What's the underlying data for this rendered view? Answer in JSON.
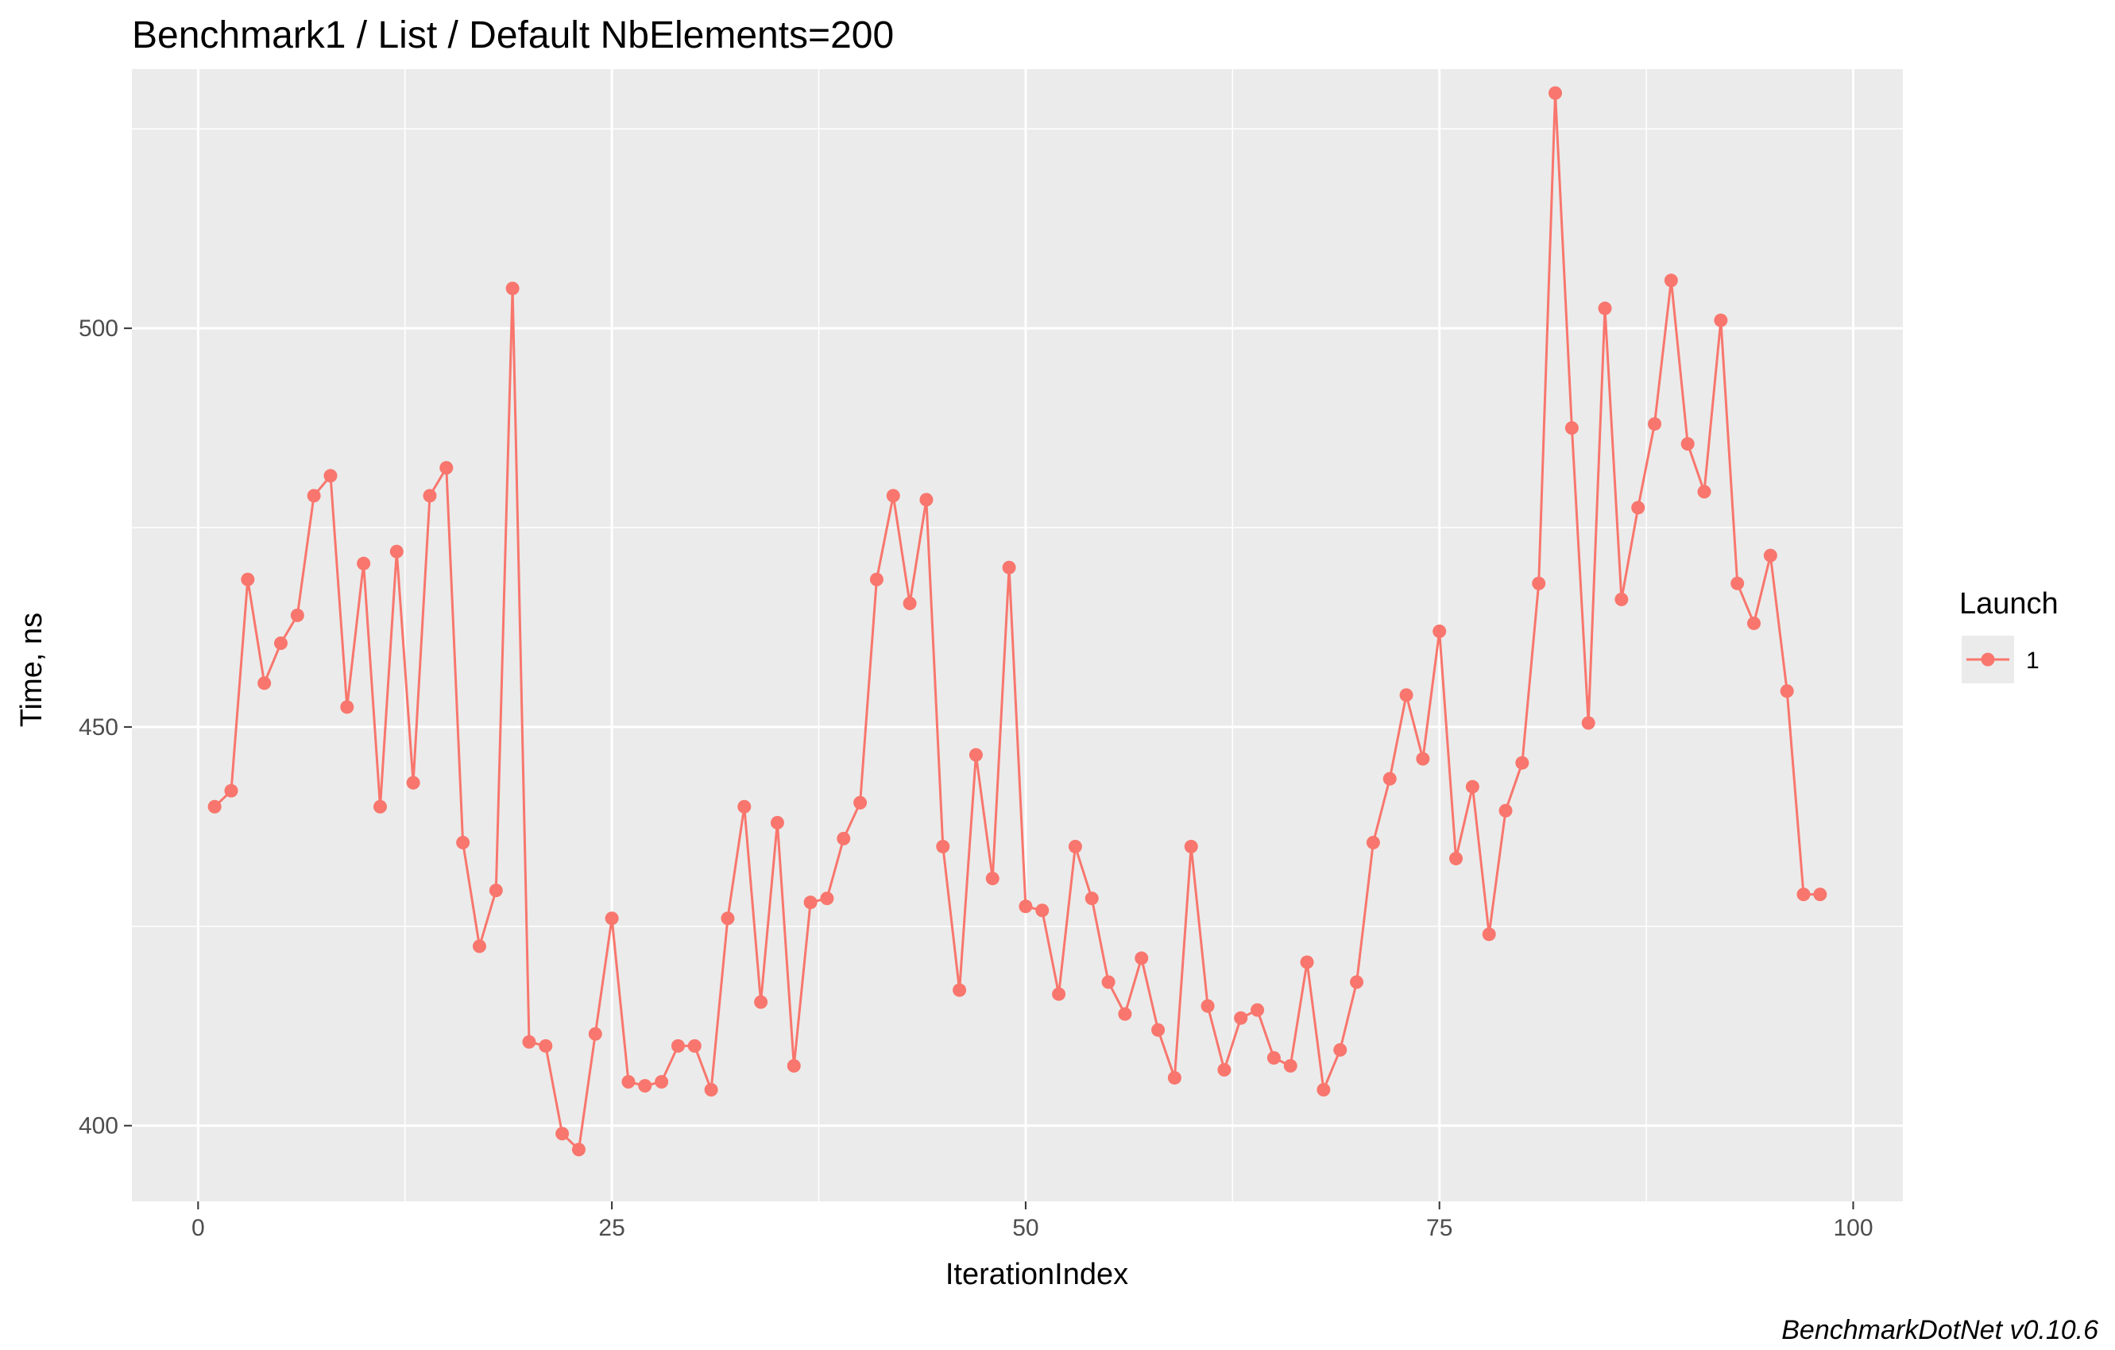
{
  "chart_data": {
    "type": "line",
    "title": "Benchmark1 / List / Default NbElements=200",
    "xlabel": "IterationIndex",
    "ylabel": "Time, ns",
    "caption": "BenchmarkDotNet v0.10.6",
    "xlim": [
      -4,
      103
    ],
    "ylim": [
      390.5,
      532.5
    ],
    "x_ticks": [
      0,
      25,
      50,
      75,
      100
    ],
    "x_tick_labels": [
      "0",
      "25",
      "50",
      "75",
      "100"
    ],
    "y_ticks": [
      400,
      450,
      500
    ],
    "y_tick_labels": [
      "400",
      "450",
      "500"
    ],
    "grid": true,
    "legend_position": "right",
    "legend_title": "Launch",
    "colors": {
      "series": "#f8766d",
      "panel": "#ebebeb",
      "grid": "#ffffff"
    },
    "series": [
      {
        "name": "1",
        "x": [
          1,
          2,
          3,
          4,
          5,
          6,
          7,
          8,
          9,
          10,
          11,
          12,
          13,
          14,
          15,
          16,
          17,
          18,
          19,
          20,
          21,
          22,
          23,
          24,
          25,
          26,
          27,
          28,
          29,
          30,
          31,
          32,
          33,
          34,
          35,
          36,
          37,
          38,
          39,
          40,
          41,
          42,
          43,
          44,
          45,
          46,
          47,
          48,
          49,
          50,
          51,
          52,
          53,
          54,
          55,
          56,
          57,
          58,
          59,
          60,
          61,
          62,
          63,
          64,
          65,
          66,
          67,
          68,
          69,
          70,
          71,
          72,
          73,
          74,
          75,
          76,
          77,
          78,
          79,
          80,
          81,
          82,
          83,
          84,
          85,
          86,
          87,
          88,
          89,
          90,
          91,
          92,
          93,
          94,
          95,
          96,
          97,
          98
        ],
        "y": [
          440.0,
          442.0,
          468.5,
          455.5,
          460.5,
          464.0,
          479.0,
          481.5,
          452.5,
          470.5,
          440.0,
          472.0,
          443.0,
          479.0,
          482.5,
          435.5,
          422.5,
          429.5,
          505.0,
          410.5,
          410.0,
          399.0,
          397.0,
          411.5,
          426.0,
          405.5,
          405.0,
          405.5,
          410.0,
          410.0,
          404.5,
          426.0,
          440.0,
          415.5,
          438.0,
          407.5,
          428.0,
          428.5,
          436.0,
          440.5,
          468.5,
          479.0,
          465.5,
          478.5,
          435.0,
          417.0,
          446.5,
          431.0,
          470.0,
          427.5,
          427.0,
          416.5,
          435.0,
          428.5,
          418.0,
          414.0,
          421.0,
          412.0,
          406.0,
          435.0,
          415.0,
          407.0,
          413.5,
          414.5,
          408.5,
          407.5,
          420.5,
          404.5,
          409.5,
          418.0,
          435.5,
          443.5,
          454.0,
          446.0,
          462.0,
          433.5,
          442.5,
          424.0,
          439.5,
          445.5,
          468.0,
          529.5,
          487.5,
          450.5,
          502.5,
          466.0,
          477.5,
          488.0,
          506.0,
          485.5,
          479.5,
          501.0,
          468.0,
          463.0,
          471.5,
          454.5,
          429.0,
          429.0
        ]
      }
    ]
  }
}
